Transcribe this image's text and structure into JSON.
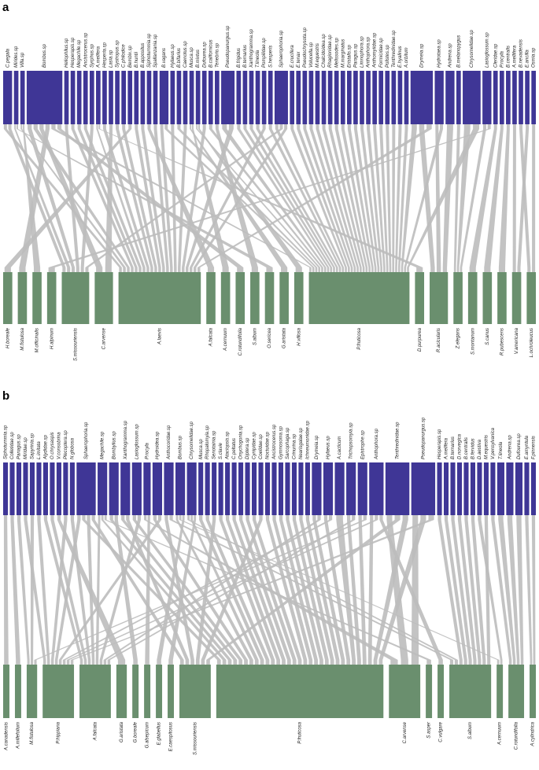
{
  "panels": [
    {
      "label": "a",
      "top": {
        "labels": [
          "C.pegala",
          "Mirides.sp",
          "Villa.sp",
          "Bombus.sp",
          "Heliophilus.sp",
          "Hesperapis.sp",
          "Megachile.sp",
          "Ancistrocerus.sp",
          "Syrphus.sp",
          "A.melifera",
          "Hesperia.sp",
          "Lasia.sp",
          "Systropus.sp",
          "C.philodice",
          "Bembix.sp",
          "B.huntii",
          "B.appositus",
          "Siphoturnmia.sp",
          "Spallanzania.sp",
          "B.vagans",
          "Hylaeus.sp",
          "B.bifarius",
          "Caenotus.sp",
          "Musca.sp",
          "B.mixtus",
          "Dufourea.sp",
          "B.californicus",
          "Tenebrio.sp",
          "Pseudopanurgus.sp",
          "B.frigidus",
          "B.ternarius",
          "Xanthogramma.sp",
          "T.lineola",
          "Pompilidae.sp",
          "S.hesperis",
          "Sphaerophoria.sp",
          "E.crucifera",
          "E.tenax",
          "Pseudochrysota.sp",
          "Volucella.sp",
          "M.equestris",
          "Chalcidoidea.sp",
          "Rhagionidae.sp",
          "Melissodes.sp",
          "M.marginatus",
          "Eristalis.sp",
          "Paragus.sp",
          "Limnophora.sp",
          "Anthophora.sp",
          "Anthomyiidae.sp",
          "Formicidae.sp",
          "Polistes.sp",
          "Tenthredinidae.sp",
          "E.hyalinus",
          "A.orbitum",
          "Drymeia.sp",
          "Hydrotaea.sp",
          "Andrena.sp",
          "B.melanopygus",
          "Chrysomelidae.sp",
          "Lasioglossum.sp",
          "Cleridae.sp",
          "P.rocyla",
          "B.centralis",
          "A.mellifera",
          "B.nevadensis",
          "E.ancilla",
          "Osmia.sp"
        ],
        "weights": [
          2,
          1,
          1,
          8,
          1,
          1,
          1,
          1,
          1,
          1,
          1,
          1,
          1,
          1,
          1,
          1,
          1,
          1,
          1,
          2,
          1,
          1,
          1,
          1,
          1,
          1,
          1,
          1,
          3,
          1,
          1,
          1,
          1,
          1,
          1,
          3,
          1,
          1,
          1,
          1,
          1,
          1,
          1,
          1,
          1,
          1,
          1,
          1,
          1,
          1,
          1,
          1,
          1,
          1,
          1,
          5,
          2,
          2,
          1,
          4,
          2,
          1,
          1,
          1,
          1,
          1,
          1,
          1
        ]
      },
      "bottom": {
        "labels": [
          "H.boreale",
          "M.fistulosa",
          "M.officinalis",
          "H.alpinum",
          "S.missouriensis",
          "C.arvense",
          "A.laevis",
          "A.falcata",
          "A.cernuum",
          "C.rotundifolia",
          "S.album",
          "O.sericea",
          "G.aristata",
          "H.villosa",
          "P.fruticosa",
          "D.purpurea",
          "R.acicularis",
          "Z.elegans",
          "S.montanum",
          "S.canus",
          "R.pubescens",
          "V.americana",
          "L.ochroleucus"
        ],
        "weights": [
          1,
          1,
          1,
          1,
          3,
          2,
          9,
          1,
          1,
          1,
          1,
          1,
          1,
          1,
          11,
          1,
          2,
          1,
          1,
          1,
          1,
          1,
          1
        ]
      },
      "links": [
        [
          0,
          6
        ],
        [
          0,
          4
        ],
        [
          1,
          4
        ],
        [
          2,
          6
        ],
        [
          3,
          4
        ],
        [
          3,
          6
        ],
        [
          3,
          5
        ],
        [
          3,
          1
        ],
        [
          3,
          14
        ],
        [
          3,
          9
        ],
        [
          4,
          4
        ],
        [
          5,
          6
        ],
        [
          6,
          6
        ],
        [
          7,
          6
        ],
        [
          8,
          4
        ],
        [
          9,
          6
        ],
        [
          10,
          6
        ],
        [
          11,
          5
        ],
        [
          12,
          6
        ],
        [
          13,
          6
        ],
        [
          14,
          0
        ],
        [
          15,
          6
        ],
        [
          16,
          6
        ],
        [
          17,
          7
        ],
        [
          18,
          6
        ],
        [
          19,
          6
        ],
        [
          19,
          14
        ],
        [
          20,
          6
        ],
        [
          21,
          14
        ],
        [
          22,
          6
        ],
        [
          23,
          12
        ],
        [
          24,
          14
        ],
        [
          25,
          6
        ],
        [
          26,
          14
        ],
        [
          27,
          10
        ],
        [
          28,
          14
        ],
        [
          28,
          6
        ],
        [
          29,
          14
        ],
        [
          30,
          14
        ],
        [
          31,
          14
        ],
        [
          32,
          14
        ],
        [
          33,
          6
        ],
        [
          34,
          14
        ],
        [
          35,
          14
        ],
        [
          35,
          4
        ],
        [
          35,
          6
        ],
        [
          36,
          14
        ],
        [
          37,
          14
        ],
        [
          38,
          14
        ],
        [
          39,
          14
        ],
        [
          40,
          14
        ],
        [
          41,
          14
        ],
        [
          42,
          14
        ],
        [
          43,
          14
        ],
        [
          44,
          14
        ],
        [
          45,
          14
        ],
        [
          46,
          14
        ],
        [
          47,
          14
        ],
        [
          48,
          14
        ],
        [
          49,
          14
        ],
        [
          50,
          14
        ],
        [
          51,
          14
        ],
        [
          52,
          14
        ],
        [
          53,
          14
        ],
        [
          54,
          14
        ],
        [
          55,
          14
        ],
        [
          55,
          16
        ],
        [
          55,
          6
        ],
        [
          56,
          16
        ],
        [
          56,
          14
        ],
        [
          57,
          16
        ],
        [
          58,
          17
        ],
        [
          59,
          17
        ],
        [
          59,
          14
        ],
        [
          60,
          17
        ],
        [
          60,
          3
        ],
        [
          61,
          18
        ],
        [
          62,
          19
        ],
        [
          63,
          20
        ],
        [
          64,
          21
        ],
        [
          65,
          22
        ],
        [
          66,
          21
        ],
        [
          67,
          22
        ],
        [
          2,
          2
        ],
        [
          1,
          11
        ],
        [
          23,
          8
        ],
        [
          24,
          13
        ],
        [
          9,
          15
        ]
      ]
    },
    {
      "label": "b",
      "top": {
        "labels": [
          "Siphoturnmia.sp",
          "Colletidae.sp",
          "Panagus.sp",
          "Miridae.sp",
          "Sapyrinia.sp",
          "L.imitata",
          "Alydidae.sp",
          "O.chrysaspis",
          "V.consobrina",
          "Plecoptera.sp",
          "N.globosa",
          "Sphaerophoria.sp",
          "Megachile.sp",
          "Bombylius.sp",
          "Xanthogramma.sp",
          "Lasioglossum.sp",
          "P.rocyla",
          "Hydroidea.sp",
          "Anthocoridae.sp",
          "Bombus.sp",
          "Chrysomelidae.sp",
          "Musca.sp",
          "Rhopalomyia.sp",
          "Senotainia.sp",
          "S.clavie",
          "Ataciopsis.sp",
          "C.peltatus",
          "Onychogonia.sp",
          "Diptera.sp",
          "Cynipidae.sp",
          "Coelidae.sp",
          "Noctuidae.sp",
          "Ancistrocerus.sp",
          "Gymnosoma.sp",
          "Sarcophaga.sp",
          "Crinurina.sp",
          "Nearisgalae.sp",
          "Ichneumonidae.sp",
          "Drymeia.sp",
          "Hylaeus.sp",
          "A.cacticum",
          "Trichopsomyia.sp",
          "Epistrophe.sp",
          "Anthophora.sp",
          "Tenthredinidae.sp",
          "Pseudopanurgus.sp",
          "Hesperapis.sp",
          "A.melifera",
          "B.ternarius",
          "D.norvegica",
          "B.centralis",
          "B.fervidus",
          "D.aestiva",
          "M.equestris",
          "V.pensylvanica",
          "T.lineola",
          "Andrena.sp",
          "Dufourea.sp",
          "E.amyntula",
          "F.pinnensis"
        ],
        "weights": [
          1,
          1,
          1,
          1,
          1,
          1,
          1,
          1,
          1,
          1,
          1,
          4,
          2,
          2,
          2,
          2,
          1.5,
          2,
          2,
          2,
          2,
          1,
          1,
          1,
          1,
          1,
          1,
          1,
          1,
          1,
          1,
          1,
          1,
          1,
          1,
          1,
          1,
          1,
          2,
          2,
          2,
          2,
          2,
          3,
          5,
          5,
          1,
          1,
          1,
          1,
          1,
          1,
          1,
          1,
          1,
          1.5,
          1.5,
          1.5,
          1,
          1
        ]
      },
      "bottom": {
        "labels": [
          "A.canadensis",
          "A.millefolium",
          "M.fistulosa",
          "P.hippiana",
          "A.falcata",
          "G.aristata",
          "G.boreale",
          "G.alsepicum",
          "E.glabellus",
          "E.caespitosus",
          "S.missouriensis",
          "P.fruticosa",
          "C.arvense",
          "S.asper",
          "C.vulgare",
          "S.album",
          "A.cernuum",
          "C.rotundifolia",
          "A.cylindrica"
        ],
        "weights": [
          0.6,
          0.6,
          1,
          3,
          3,
          1,
          0.6,
          0.6,
          0.6,
          0.6,
          3,
          16,
          3,
          0.6,
          0.6,
          4,
          0.6,
          1.5,
          0.6
        ]
      },
      "links": [
        [
          0,
          0
        ],
        [
          1,
          1
        ],
        [
          2,
          2
        ],
        [
          3,
          3
        ],
        [
          4,
          2
        ],
        [
          5,
          3
        ],
        [
          6,
          4
        ],
        [
          7,
          4
        ],
        [
          8,
          5
        ],
        [
          9,
          3
        ],
        [
          10,
          4
        ],
        [
          11,
          3
        ],
        [
          11,
          11
        ],
        [
          11,
          4
        ],
        [
          11,
          10
        ],
        [
          12,
          4
        ],
        [
          12,
          11
        ],
        [
          13,
          11
        ],
        [
          13,
          6
        ],
        [
          14,
          11
        ],
        [
          14,
          10
        ],
        [
          15,
          11
        ],
        [
          15,
          4
        ],
        [
          16,
          12
        ],
        [
          17,
          11
        ],
        [
          17,
          3
        ],
        [
          18,
          10
        ],
        [
          18,
          15
        ],
        [
          19,
          11
        ],
        [
          19,
          16
        ],
        [
          20,
          15
        ],
        [
          20,
          11
        ],
        [
          21,
          11
        ],
        [
          22,
          11
        ],
        [
          23,
          10
        ],
        [
          24,
          11
        ],
        [
          25,
          11
        ],
        [
          26,
          11
        ],
        [
          27,
          11
        ],
        [
          28,
          11
        ],
        [
          29,
          11
        ],
        [
          30,
          10
        ],
        [
          31,
          11
        ],
        [
          32,
          11
        ],
        [
          33,
          11
        ],
        [
          34,
          11
        ],
        [
          35,
          11
        ],
        [
          36,
          11
        ],
        [
          37,
          11
        ],
        [
          38,
          11
        ],
        [
          38,
          4
        ],
        [
          39,
          11
        ],
        [
          39,
          3
        ],
        [
          40,
          11
        ],
        [
          41,
          11
        ],
        [
          41,
          4
        ],
        [
          42,
          11
        ],
        [
          42,
          2
        ],
        [
          43,
          11
        ],
        [
          43,
          3
        ],
        [
          44,
          12
        ],
        [
          44,
          10
        ],
        [
          44,
          11
        ],
        [
          45,
          12
        ],
        [
          45,
          11
        ],
        [
          45,
          3
        ],
        [
          46,
          15
        ],
        [
          47,
          15
        ],
        [
          48,
          15
        ],
        [
          49,
          15
        ],
        [
          50,
          15
        ],
        [
          51,
          15
        ],
        [
          52,
          16
        ],
        [
          53,
          15
        ],
        [
          54,
          17
        ],
        [
          55,
          17
        ],
        [
          56,
          17
        ],
        [
          57,
          17
        ],
        [
          58,
          18
        ],
        [
          59,
          18
        ],
        [
          16,
          7
        ],
        [
          19,
          8
        ],
        [
          20,
          9
        ],
        [
          12,
          13
        ],
        [
          43,
          14
        ]
      ]
    }
  ]
}
